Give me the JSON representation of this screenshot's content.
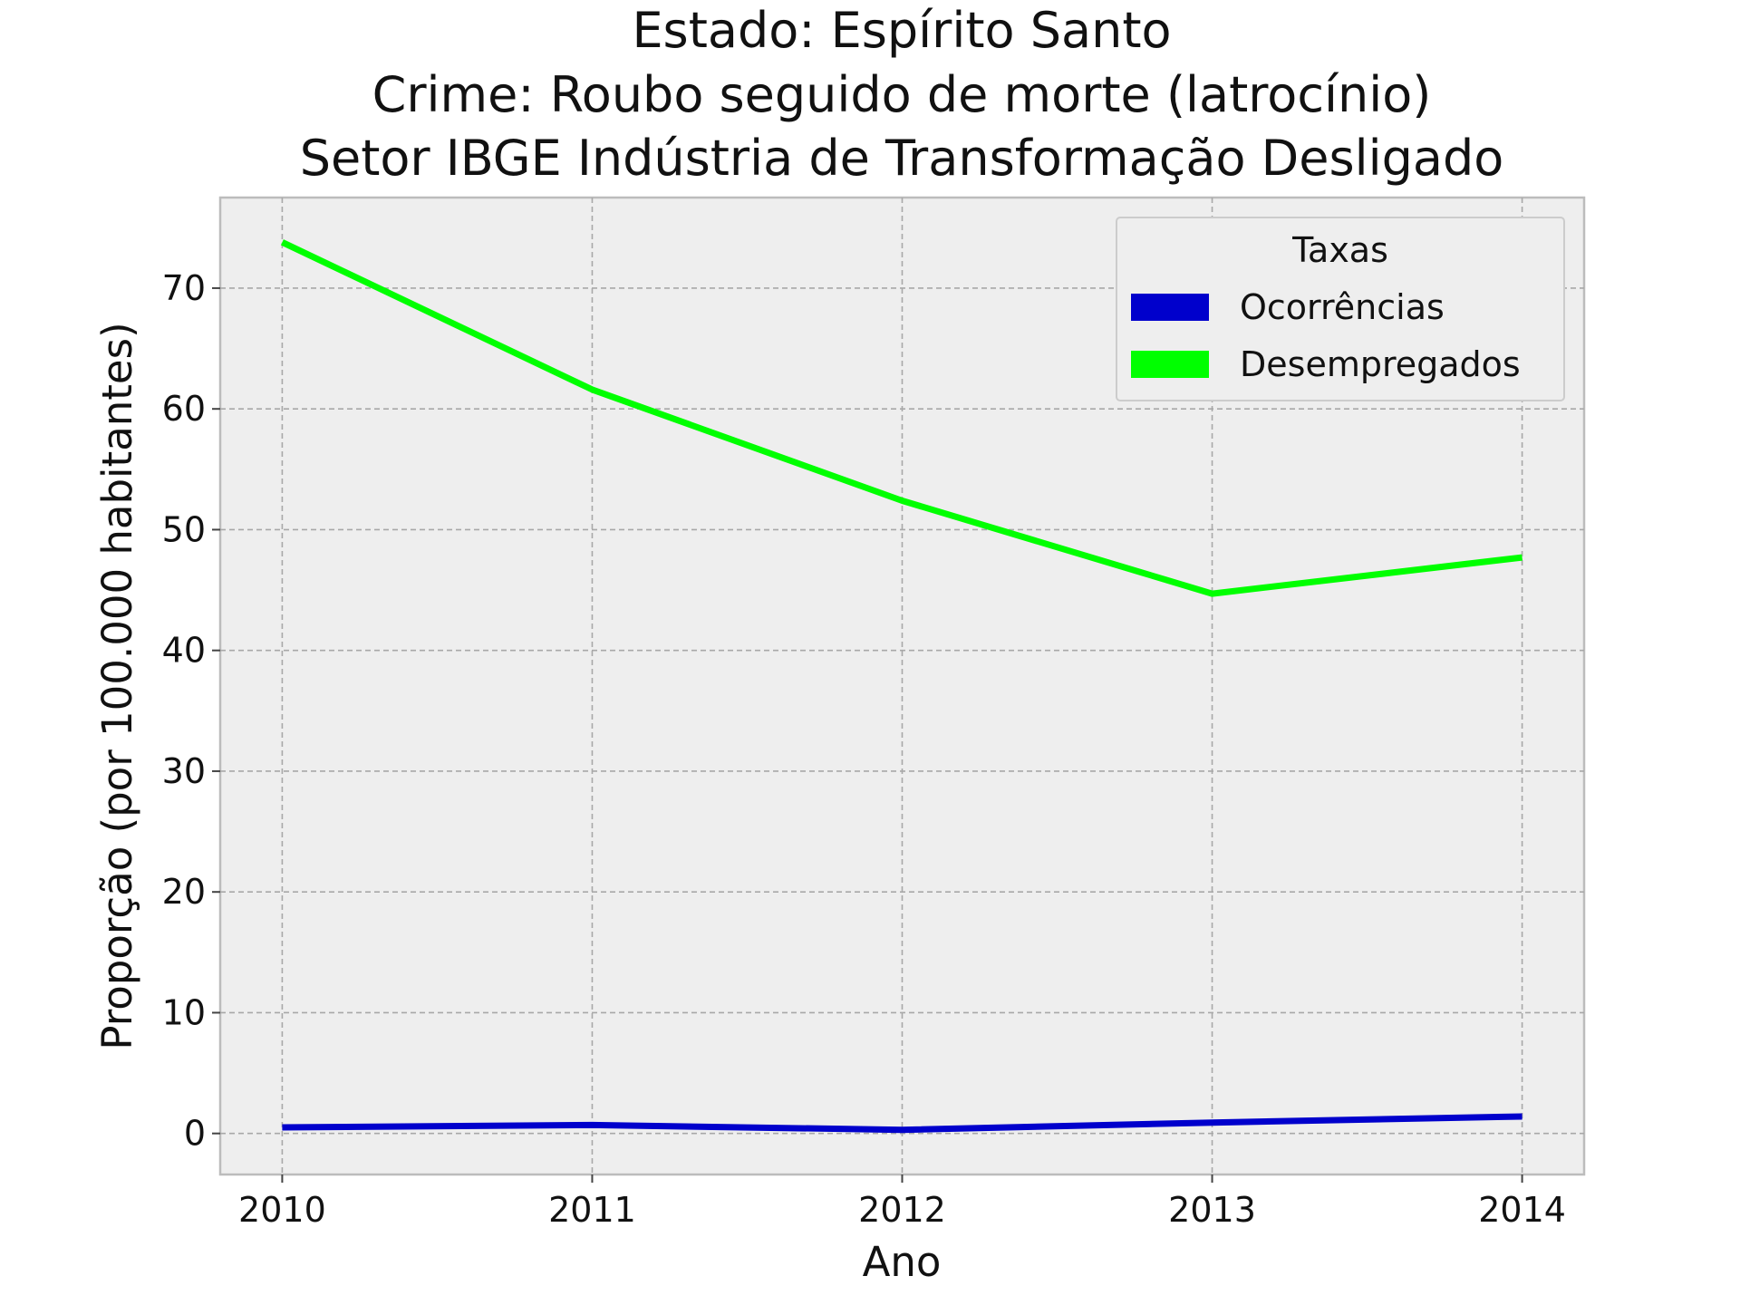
{
  "chart_data": {
    "type": "line",
    "title_lines": [
      "Estado: Espírito Santo",
      "Crime: Roubo seguido de morte (latrocínio)",
      "Setor IBGE  Indústria de Transformação   Desligado"
    ],
    "xlabel": "Ano",
    "ylabel": "Proporção (por 100.000 habitantes)",
    "x": [
      2010,
      2011,
      2012,
      2013,
      2014
    ],
    "x_tick_labels": [
      "2010",
      "2011",
      "2012",
      "2013",
      "2014"
    ],
    "y_ticks": [
      0,
      10,
      20,
      30,
      40,
      50,
      60,
      70
    ],
    "y_tick_labels": [
      "0",
      "10",
      "20",
      "30",
      "40",
      "50",
      "60",
      "70"
    ],
    "xlim": [
      2009.8,
      2014.2
    ],
    "ylim": [
      -3.4,
      77.5
    ],
    "grid": true,
    "background": "#eeeeee",
    "legend": {
      "title": "Taxas",
      "placement": "top-right"
    },
    "series": [
      {
        "name": "Ocorrências",
        "color": "#0000cc",
        "values": [
          0.5,
          0.7,
          0.3,
          0.9,
          1.4
        ]
      },
      {
        "name": "Desempregados",
        "color": "#00ff00",
        "values": [
          73.8,
          61.6,
          52.4,
          44.7,
          47.7
        ]
      }
    ]
  }
}
